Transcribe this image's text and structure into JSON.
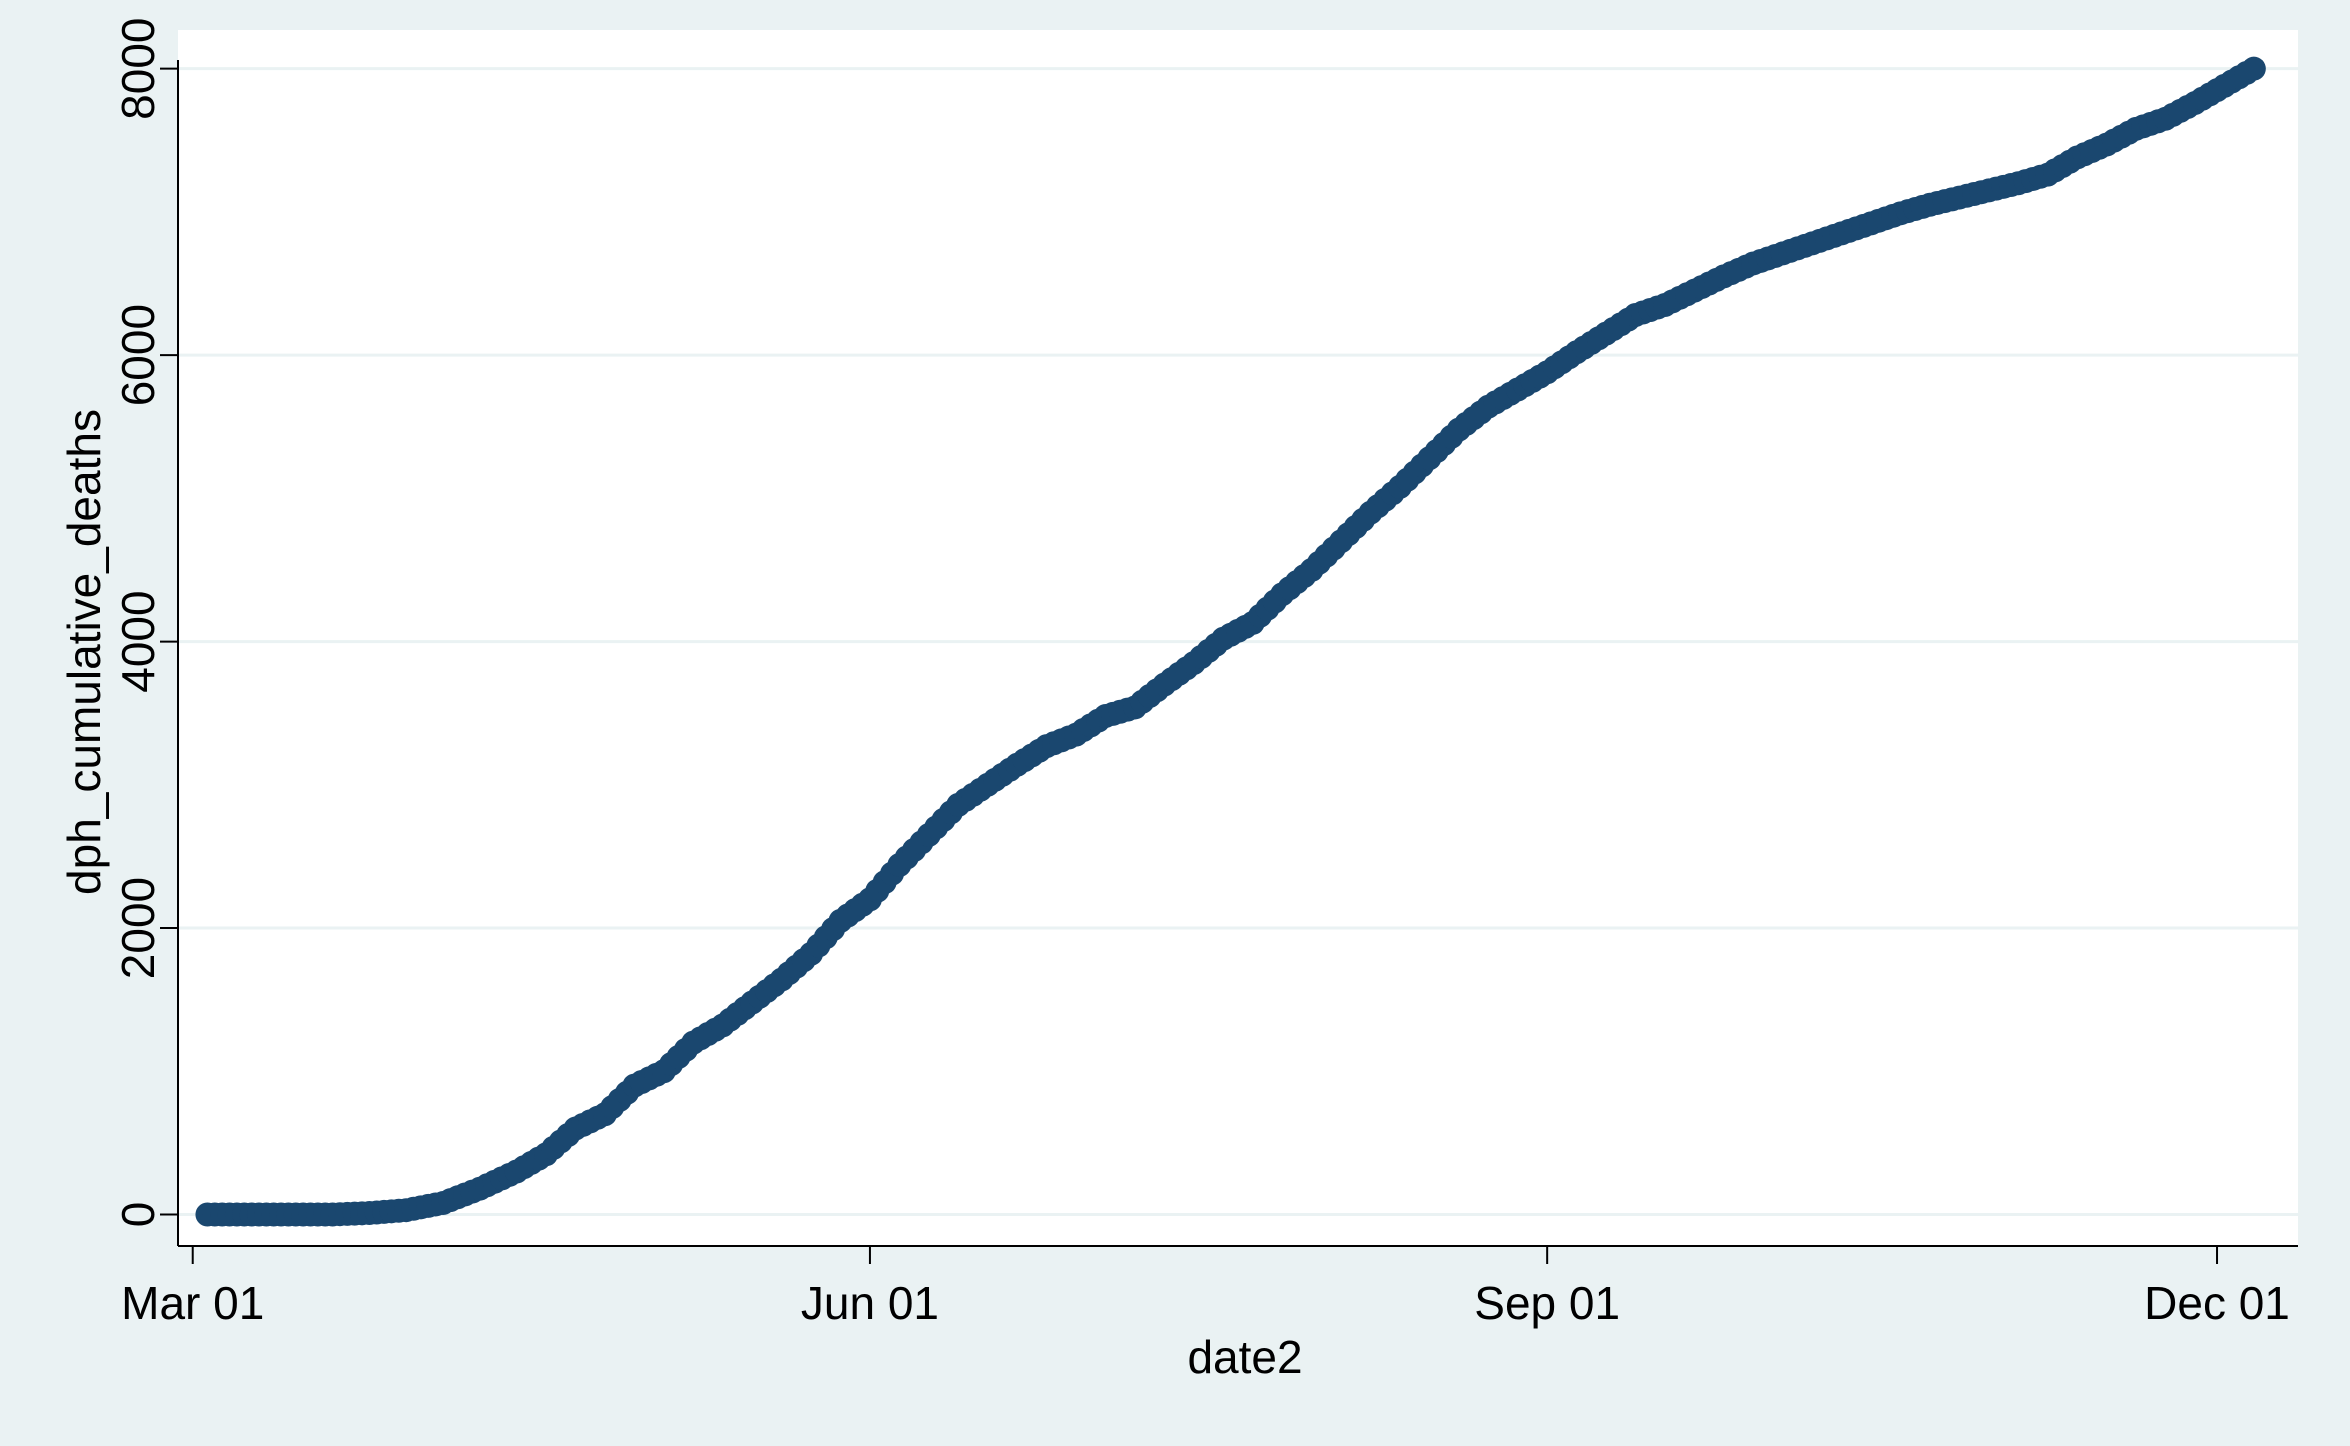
{
  "chart_data": {
    "type": "scatter",
    "xlabel": "date2",
    "ylabel": "dph_cumulative_deaths",
    "x_tick_labels": [
      "Mar 01",
      "Jun 01",
      "Sep 01",
      "Dec 01"
    ],
    "x_ticks": [
      "2020-03-01",
      "2020-06-01",
      "2020-09-01",
      "2020-12-01"
    ],
    "y_tick_labels": [
      "0",
      "2000",
      "4000",
      "6000",
      "8000"
    ],
    "y_ticks": [
      0,
      2000,
      4000,
      6000,
      8000
    ],
    "xlim": [
      "2020-02-28",
      "2020-12-12"
    ],
    "ylim": [
      -220,
      8270
    ],
    "grid": true,
    "legend": "none",
    "marker_color": "#1a476f",
    "series": [
      {
        "points": [
          [
            "2020-03-03",
            0
          ],
          [
            "2020-03-10",
            0
          ],
          [
            "2020-03-20",
            0
          ],
          [
            "2020-03-25",
            10
          ],
          [
            "2020-03-30",
            30
          ],
          [
            "2020-04-04",
            80
          ],
          [
            "2020-04-09",
            180
          ],
          [
            "2020-04-14",
            300
          ],
          [
            "2020-04-18",
            420
          ],
          [
            "2020-04-22",
            600
          ],
          [
            "2020-04-26",
            700
          ],
          [
            "2020-04-30",
            900
          ],
          [
            "2020-05-04",
            1000
          ],
          [
            "2020-05-08",
            1200
          ],
          [
            "2020-05-12",
            1320
          ],
          [
            "2020-05-16",
            1480
          ],
          [
            "2020-05-20",
            1640
          ],
          [
            "2020-05-24",
            1820
          ],
          [
            "2020-05-28",
            2050
          ],
          [
            "2020-06-01",
            2200
          ],
          [
            "2020-06-05",
            2440
          ],
          [
            "2020-06-09",
            2650
          ],
          [
            "2020-06-13",
            2860
          ],
          [
            "2020-06-17",
            3000
          ],
          [
            "2020-06-21",
            3140
          ],
          [
            "2020-06-25",
            3270
          ],
          [
            "2020-06-29",
            3350
          ],
          [
            "2020-07-03",
            3480
          ],
          [
            "2020-07-07",
            3540
          ],
          [
            "2020-07-11",
            3700
          ],
          [
            "2020-07-15",
            3850
          ],
          [
            "2020-07-19",
            4020
          ],
          [
            "2020-07-23",
            4130
          ],
          [
            "2020-07-27",
            4330
          ],
          [
            "2020-07-31",
            4500
          ],
          [
            "2020-08-04",
            4700
          ],
          [
            "2020-08-08",
            4900
          ],
          [
            "2020-08-12",
            5080
          ],
          [
            "2020-08-16",
            5280
          ],
          [
            "2020-08-20",
            5480
          ],
          [
            "2020-08-24",
            5640
          ],
          [
            "2020-08-28",
            5760
          ],
          [
            "2020-09-01",
            5880
          ],
          [
            "2020-09-05",
            6020
          ],
          [
            "2020-09-09",
            6150
          ],
          [
            "2020-09-13",
            6280
          ],
          [
            "2020-09-17",
            6350
          ],
          [
            "2020-09-21",
            6450
          ],
          [
            "2020-09-25",
            6550
          ],
          [
            "2020-09-29",
            6640
          ],
          [
            "2020-10-03",
            6710
          ],
          [
            "2020-10-07",
            6780
          ],
          [
            "2020-10-11",
            6850
          ],
          [
            "2020-10-15",
            6920
          ],
          [
            "2020-10-19",
            6990
          ],
          [
            "2020-10-23",
            7050
          ],
          [
            "2020-10-27",
            7100
          ],
          [
            "2020-10-31",
            7150
          ],
          [
            "2020-11-04",
            7200
          ],
          [
            "2020-11-08",
            7260
          ],
          [
            "2020-11-12",
            7380
          ],
          [
            "2020-11-16",
            7470
          ],
          [
            "2020-11-20",
            7580
          ],
          [
            "2020-11-24",
            7650
          ],
          [
            "2020-11-28",
            7760
          ],
          [
            "2020-12-02",
            7880
          ],
          [
            "2020-12-06",
            8000
          ]
        ]
      }
    ]
  }
}
